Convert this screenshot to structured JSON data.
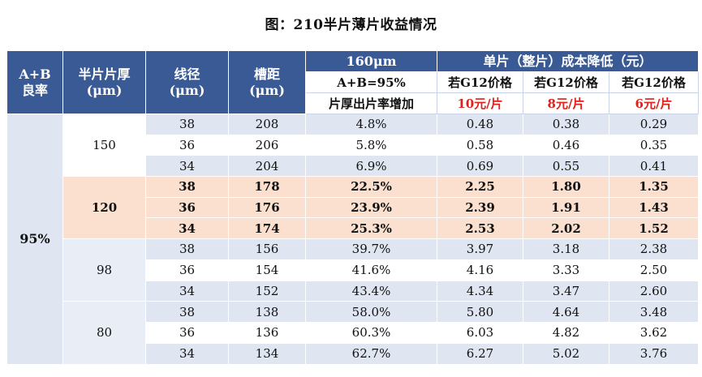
{
  "title": "图：210半片薄片收益情况",
  "header": {
    "col_yield": "A+B\n良率",
    "col_yield_l1": "A+B",
    "col_yield_l2": "良率",
    "col_thick_l1": "半片片厚",
    "col_thick_l2": "(μm)",
    "col_wire_l1": "线径",
    "col_wire_l2": "(μm)",
    "col_pitch_l1": "槽距",
    "col_pitch_l2": "(μm)",
    "group_160": "160μm",
    "sub_160_l1": "A+B=95%",
    "sub_160_l2": "片厚出片率增加",
    "group_cost": "单片（整片）成本降低（元）",
    "price_prefix": "若G12价格",
    "price_10": "10元/片",
    "price_8": "8元/片",
    "price_6": "6元/片"
  },
  "yield_value": "95%",
  "groups": [
    {
      "thickness": "150",
      "rows": [
        {
          "wire": "38",
          "pitch": "208",
          "increase": "4.8%",
          "c10": "0.48",
          "c8": "0.38",
          "c6": "0.29"
        },
        {
          "wire": "36",
          "pitch": "206",
          "increase": "5.8%",
          "c10": "0.58",
          "c8": "0.46",
          "c6": "0.35"
        },
        {
          "wire": "34",
          "pitch": "204",
          "increase": "6.9%",
          "c10": "0.69",
          "c8": "0.55",
          "c6": "0.41"
        }
      ]
    },
    {
      "thickness": "120",
      "rows": [
        {
          "wire": "38",
          "pitch": "178",
          "increase": "22.5%",
          "c10": "2.25",
          "c8": "1.80",
          "c6": "1.35"
        },
        {
          "wire": "36",
          "pitch": "176",
          "increase": "23.9%",
          "c10": "2.39",
          "c8": "1.91",
          "c6": "1.43"
        },
        {
          "wire": "34",
          "pitch": "174",
          "increase": "25.3%",
          "c10": "2.53",
          "c8": "2.02",
          "c6": "1.52"
        }
      ]
    },
    {
      "thickness": "98",
      "rows": [
        {
          "wire": "38",
          "pitch": "156",
          "increase": "39.7%",
          "c10": "3.97",
          "c8": "3.18",
          "c6": "2.38"
        },
        {
          "wire": "36",
          "pitch": "154",
          "increase": "41.6%",
          "c10": "4.16",
          "c8": "3.33",
          "c6": "2.50"
        },
        {
          "wire": "34",
          "pitch": "152",
          "increase": "43.4%",
          "c10": "4.34",
          "c8": "3.47",
          "c6": "2.60"
        }
      ]
    },
    {
      "thickness": "80",
      "rows": [
        {
          "wire": "38",
          "pitch": "138",
          "increase": "58.0%",
          "c10": "5.80",
          "c8": "4.64",
          "c6": "3.48"
        },
        {
          "wire": "36",
          "pitch": "136",
          "increase": "60.3%",
          "c10": "6.03",
          "c8": "4.82",
          "c6": "3.62"
        },
        {
          "wire": "34",
          "pitch": "134",
          "increase": "62.7%",
          "c10": "6.27",
          "c8": "5.02",
          "c6": "3.76"
        }
      ]
    }
  ],
  "colors": {
    "header_bg": "#3a5a95",
    "row_light": "#dfe6f2",
    "row_highlight": "#fbe0cf",
    "price_red": "#e0201b"
  }
}
